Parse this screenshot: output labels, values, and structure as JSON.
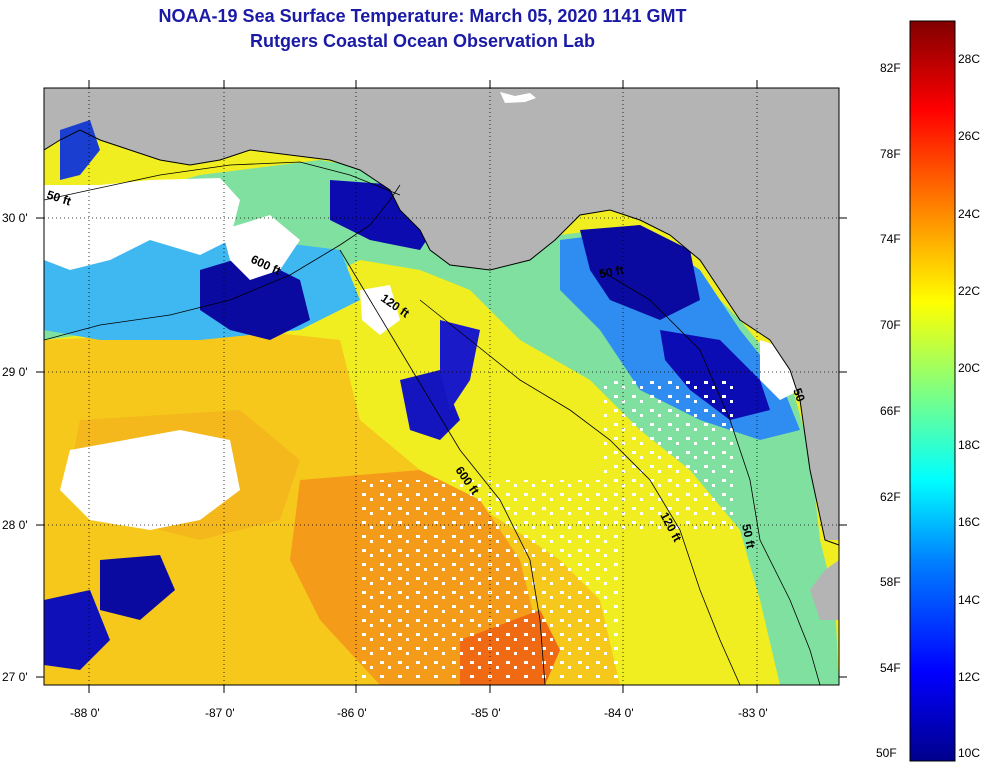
{
  "header": {
    "title": "NOAA-19 Sea Surface Temperature:  March 05, 2020 1141 GMT",
    "subtitle": "Rutgers Coastal Ocean Observation Lab"
  },
  "map": {
    "lat_labels": [
      "30 0'",
      "29 0'",
      "28 0'",
      "27 0'"
    ],
    "lon_labels": [
      "-88 0'",
      "-87 0'",
      "-86 0'",
      "-85 0'",
      "-84 0'",
      "-83 0'"
    ],
    "depth_labels": [
      "50 ft",
      "600 ft",
      "120 ft",
      "50 ft",
      "600 ft",
      "120 ft",
      "50 ft",
      "50"
    ],
    "land_color": "#b4b4b4",
    "cloud_color": "#ffffff"
  },
  "colorbar": {
    "f_labels": [
      "82F",
      "78F",
      "74F",
      "70F",
      "66F",
      "62F",
      "58F",
      "54F",
      "50F"
    ],
    "c_labels": [
      "28C",
      "26C",
      "24C",
      "22C",
      "20C",
      "18C",
      "16C",
      "14C",
      "12C",
      "10C"
    ],
    "colors": [
      "#00008c",
      "#0000ff",
      "#0080ff",
      "#00ffff",
      "#80ff80",
      "#ffff00",
      "#ff8000",
      "#ff0000",
      "#800000"
    ]
  }
}
